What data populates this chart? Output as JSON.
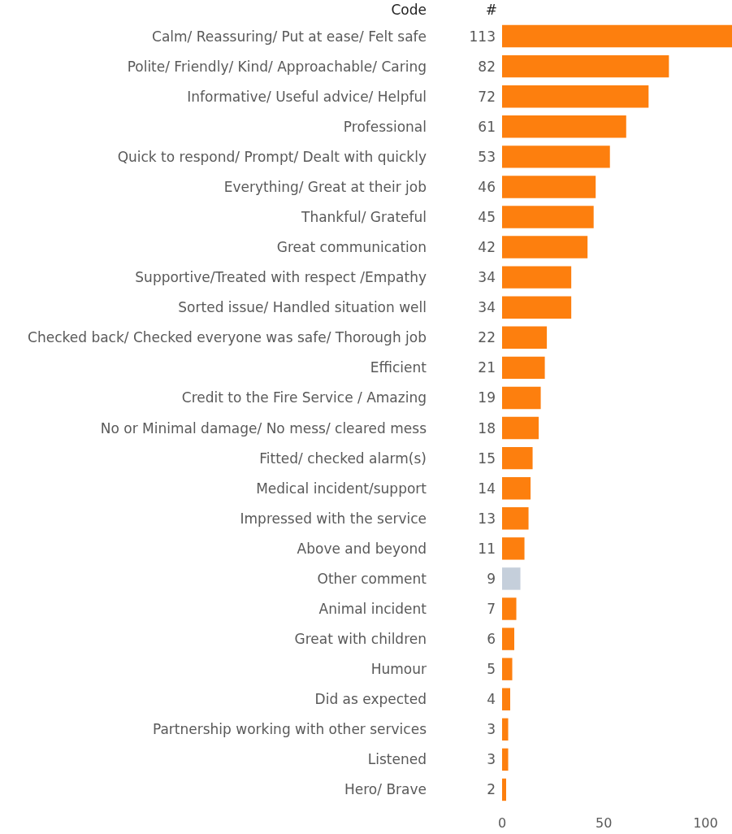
{
  "chart_data": {
    "type": "bar",
    "orientation": "horizontal",
    "ylabel": "Code",
    "annotations": [
      "#"
    ],
    "categories": [
      "Calm/ Reassuring/ Put at ease/ Felt safe",
      "Polite/ Friendly/ Kind/ Approachable/ Caring",
      "Informative/ Useful advice/ Helpful",
      "Professional",
      "Quick to respond/ Prompt/ Dealt with quickly",
      "Everything/ Great at their job",
      "Thankful/ Grateful",
      "Great communication",
      "Supportive/Treated with respect /Empathy",
      "Sorted issue/ Handled situation well",
      "Checked back/ Checked everyone was safe/ Thorough job",
      "Efficient",
      "Credit to the Fire Service / Amazing",
      "No or Minimal damage/ No mess/ cleared mess",
      "Fitted/ checked alarm(s)",
      "Medical incident/support",
      "Impressed with the service",
      "Above and beyond",
      "Other comment",
      "Animal incident",
      "Great with children",
      "Humour",
      "Did as expected",
      "Partnership working with other services",
      "Listened",
      "Hero/ Brave"
    ],
    "values": [
      113,
      82,
      72,
      61,
      53,
      46,
      45,
      42,
      34,
      34,
      22,
      21,
      19,
      18,
      15,
      14,
      13,
      11,
      9,
      7,
      6,
      5,
      4,
      3,
      3,
      2
    ],
    "colors": [
      "#fd7f0e",
      "#fd7f0e",
      "#fd7f0e",
      "#fd7f0e",
      "#fd7f0e",
      "#fd7f0e",
      "#fd7f0e",
      "#fd7f0e",
      "#fd7f0e",
      "#fd7f0e",
      "#fd7f0e",
      "#fd7f0e",
      "#fd7f0e",
      "#fd7f0e",
      "#fd7f0e",
      "#fd7f0e",
      "#fd7f0e",
      "#fd7f0e",
      "#c5cfdb",
      "#fd7f0e",
      "#fd7f0e",
      "#fd7f0e",
      "#fd7f0e",
      "#fd7f0e",
      "#fd7f0e",
      "#fd7f0e"
    ],
    "xlim": [
      0,
      113
    ],
    "xticks": [
      0,
      50,
      100
    ],
    "data_labels": true
  }
}
